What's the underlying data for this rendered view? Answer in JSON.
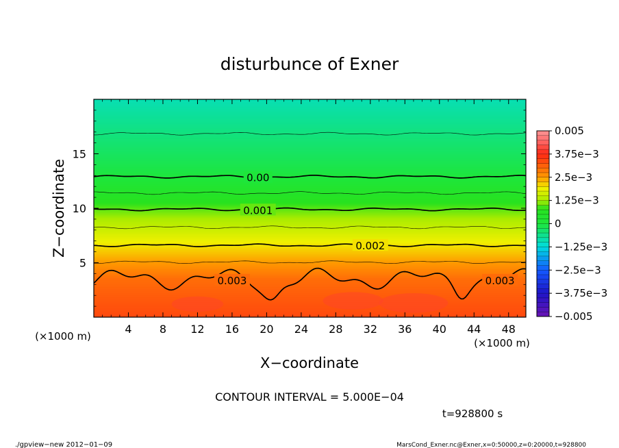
{
  "chart_data": {
    "type": "heatmap",
    "title": "disturbunce of Exner",
    "xlabel": "X−coordinate",
    "ylabel": "Z−coordinate",
    "x_unit_left": "(×1000 m)",
    "x_unit_right": "(×1000 m)",
    "xlim": [
      0,
      50
    ],
    "ylim": [
      0,
      20
    ],
    "x_ticks": [
      {
        "value": 4,
        "label": "4"
      },
      {
        "value": 8,
        "label": "8"
      },
      {
        "value": 12,
        "label": "12"
      },
      {
        "value": 16,
        "label": "16"
      },
      {
        "value": 20,
        "label": "20"
      },
      {
        "value": 24,
        "label": "24"
      },
      {
        "value": 28,
        "label": "28"
      },
      {
        "value": 32,
        "label": "32"
      },
      {
        "value": 36,
        "label": "36"
      },
      {
        "value": 40,
        "label": "40"
      },
      {
        "value": 44,
        "label": "44"
      },
      {
        "value": 48,
        "label": "48"
      }
    ],
    "y_ticks": [
      {
        "value": 5,
        "label": "5"
      },
      {
        "value": 10,
        "label": "10"
      },
      {
        "value": 15,
        "label": "15"
      }
    ],
    "colorbar": {
      "range": [
        -0.005,
        0.005
      ],
      "labels": [
        {
          "value": 0.005,
          "label": "0.005"
        },
        {
          "value": 0.00375,
          "label": "3.75e−3"
        },
        {
          "value": 0.0025,
          "label": "2.5e−3"
        },
        {
          "value": 0.00125,
          "label": "1.25e−3"
        },
        {
          "value": 0,
          "label": "0"
        },
        {
          "value": -0.00125,
          "label": "−1.25e−3"
        },
        {
          "value": -0.0025,
          "label": "−2.5e−3"
        },
        {
          "value": -0.00375,
          "label": "−3.75e−3"
        },
        {
          "value": -0.005,
          "label": "−0.005"
        }
      ]
    },
    "contour_labels": [
      {
        "label": "0.00",
        "x": 19,
        "z": 12.85
      },
      {
        "label": "0.001",
        "x": 19,
        "z": 9.85
      },
      {
        "label": "0.002",
        "x": 32,
        "z": 6.6
      },
      {
        "label": "0.003",
        "x": 16,
        "z": 3.4
      },
      {
        "label": "0.003",
        "x": 47,
        "z": 3.4
      }
    ],
    "profile_levels": [
      {
        "value": 0.0034,
        "z": 0
      },
      {
        "value": 0.003,
        "z": 3.5
      },
      {
        "value": 0.002,
        "z": 6.6
      },
      {
        "value": 0.001,
        "z": 9.9
      },
      {
        "value": 0.0,
        "z": 12.9
      },
      {
        "value": -0.0009,
        "z": 20
      }
    ]
  },
  "annotations": {
    "contour_interval": "CONTOUR INTERVAL = 5.000E−04",
    "time": "t=928800 s",
    "footer_left": "./gpview−new  2012−01−09",
    "footer_right": "MarsCond_Exner.nc@Exner,x=0:50000,z=0:20000,t=928800"
  },
  "colors": {
    "green": "#22e422",
    "yellow": "#f0f000",
    "orange": "#ff9a00",
    "red": "#ff2a14",
    "cyan": "#00e0e0",
    "blue": "#1450ff",
    "purple": "#6a14b4",
    "pink": "#ff8080"
  }
}
